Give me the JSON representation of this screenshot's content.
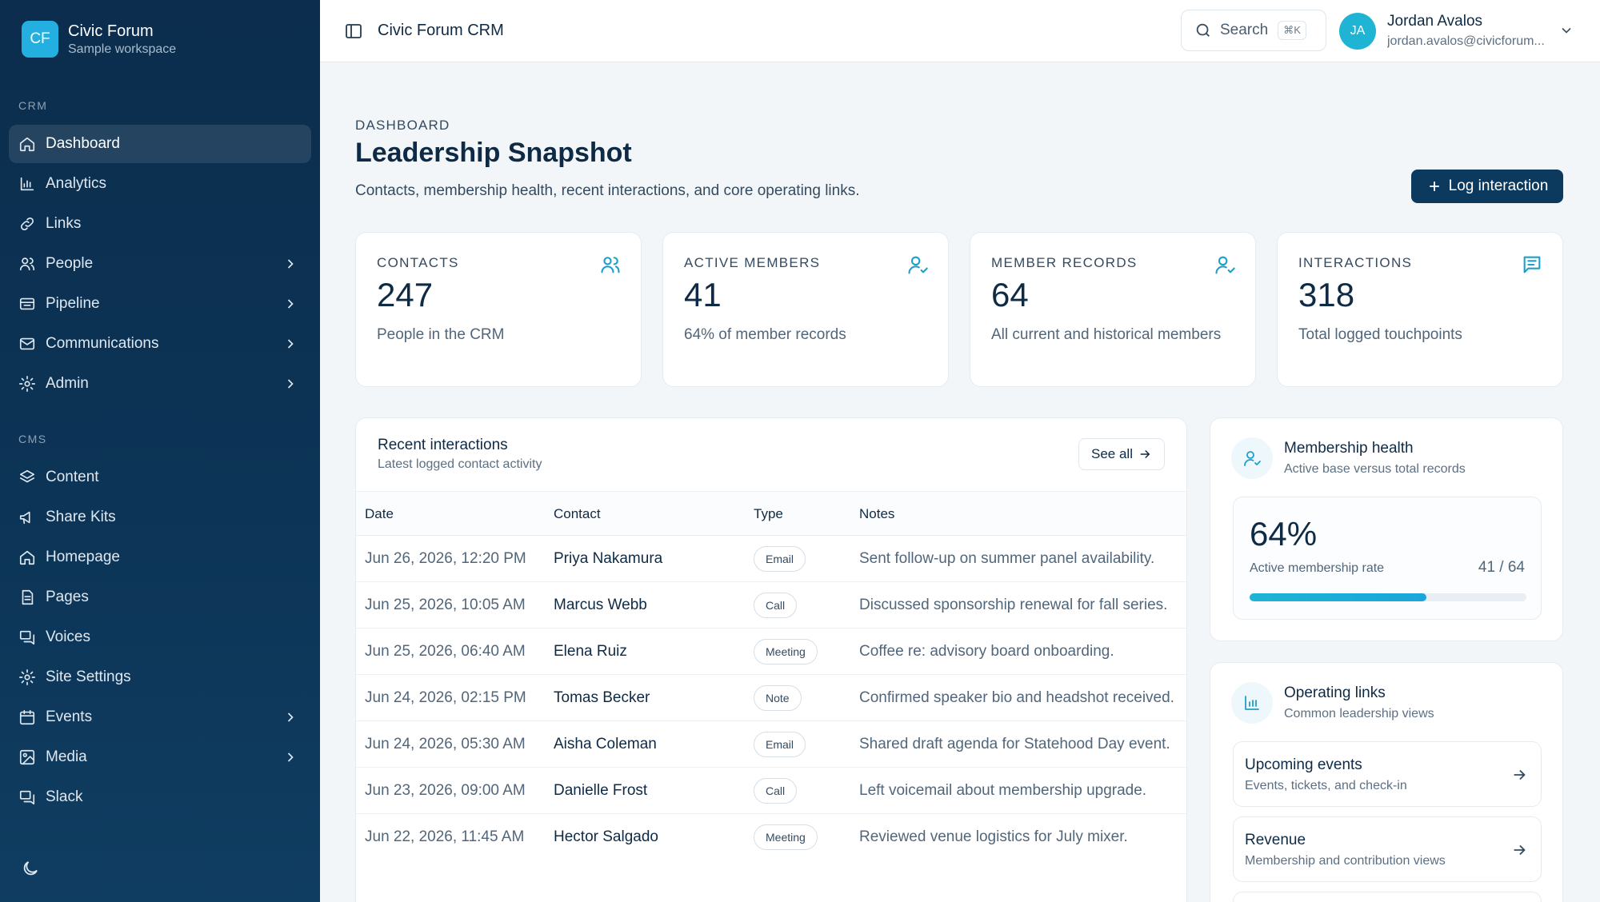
{
  "brand": {
    "logo": "CF",
    "name": "Civic Forum",
    "subtitle": "Sample workspace"
  },
  "sidebar": {
    "crm_label": "CRM",
    "crm_items": [
      {
        "label": "Dashboard",
        "icon": "home-icon",
        "active": true,
        "chevron": false
      },
      {
        "label": "Analytics",
        "icon": "chart-icon",
        "chevron": false
      },
      {
        "label": "Links",
        "icon": "link-icon",
        "chevron": false
      },
      {
        "label": "People",
        "icon": "people-icon",
        "chevron": true
      },
      {
        "label": "Pipeline",
        "icon": "pipeline-icon",
        "chevron": true
      },
      {
        "label": "Communications",
        "icon": "mail-icon",
        "chevron": true
      },
      {
        "label": "Admin",
        "icon": "gear-icon",
        "chevron": true
      }
    ],
    "cms_label": "CMS",
    "cms_items": [
      {
        "label": "Content",
        "icon": "layers-icon",
        "chevron": false
      },
      {
        "label": "Share Kits",
        "icon": "megaphone-icon",
        "chevron": false
      },
      {
        "label": "Homepage",
        "icon": "home-icon",
        "chevron": false
      },
      {
        "label": "Pages",
        "icon": "page-icon",
        "chevron": false
      },
      {
        "label": "Voices",
        "icon": "chat-icon",
        "chevron": false
      },
      {
        "label": "Site Settings",
        "icon": "gear-icon",
        "chevron": false
      },
      {
        "label": "Events",
        "icon": "calendar-icon",
        "chevron": true
      },
      {
        "label": "Media",
        "icon": "image-icon",
        "chevron": true
      },
      {
        "label": "Slack",
        "icon": "chat-icon",
        "chevron": false
      }
    ]
  },
  "topbar": {
    "app_title": "Civic Forum CRM",
    "search_label": "Search",
    "search_shortcut": "⌘K",
    "user_initials": "JA",
    "user_name": "Jordan Avalos",
    "user_email": "jordan.avalos@civicforum..."
  },
  "header": {
    "eyebrow": "DASHBOARD",
    "title": "Leadership Snapshot",
    "subtitle": "Contacts, membership health, recent interactions, and core operating links.",
    "action_label": "Log interaction"
  },
  "stats": [
    {
      "label": "CONTACTS",
      "value": "247",
      "desc": "People in the CRM",
      "icon": "people-icon"
    },
    {
      "label": "ACTIVE MEMBERS",
      "value": "41",
      "desc": "64% of member records",
      "icon": "user-check-icon"
    },
    {
      "label": "MEMBER RECORDS",
      "value": "64",
      "desc": "All current and historical members",
      "icon": "user-check-icon"
    },
    {
      "label": "INTERACTIONS",
      "value": "318",
      "desc": "Total logged touchpoints",
      "icon": "message-icon"
    }
  ],
  "interactions": {
    "title": "Recent interactions",
    "subtitle": "Latest logged contact activity",
    "see_all": "See all",
    "columns": [
      "Date",
      "Contact",
      "Type",
      "Notes"
    ],
    "rows": [
      {
        "date": "Jun 26, 2026, 12:20 PM",
        "contact": "Priya Nakamura",
        "type": "Email",
        "notes": "Sent follow-up on summer panel availability."
      },
      {
        "date": "Jun 25, 2026, 10:05 AM",
        "contact": "Marcus Webb",
        "type": "Call",
        "notes": "Discussed sponsorship renewal for fall series."
      },
      {
        "date": "Jun 25, 2026, 06:40 AM",
        "contact": "Elena Ruiz",
        "type": "Meeting",
        "notes": "Coffee re: advisory board onboarding."
      },
      {
        "date": "Jun 24, 2026, 02:15 PM",
        "contact": "Tomas Becker",
        "type": "Note",
        "notes": "Confirmed speaker bio and headshot received."
      },
      {
        "date": "Jun 24, 2026, 05:30 AM",
        "contact": "Aisha Coleman",
        "type": "Email",
        "notes": "Shared draft agenda for Statehood Day event."
      },
      {
        "date": "Jun 23, 2026, 09:00 AM",
        "contact": "Danielle Frost",
        "type": "Call",
        "notes": "Left voicemail about membership upgrade."
      },
      {
        "date": "Jun 22, 2026, 11:45 AM",
        "contact": "Hector Salgado",
        "type": "Meeting",
        "notes": "Reviewed venue logistics for July mixer."
      }
    ]
  },
  "membership_health": {
    "title": "Membership health",
    "subtitle": "Active base versus total records",
    "rate": "64%",
    "rate_fraction": 0.64,
    "rate_label": "Active membership rate",
    "ratio": "41 / 64"
  },
  "operating_links": {
    "title": "Operating links",
    "subtitle": "Common leadership views",
    "items": [
      {
        "title": "Upcoming events",
        "desc": "Events, tickets, and check-in"
      },
      {
        "title": "Revenue",
        "desc": "Membership and contribution views"
      }
    ]
  },
  "colors": {
    "sidebar": "#0c2d4d",
    "accent": "#1fb3d4",
    "primary_button": "#0c3a5e"
  }
}
